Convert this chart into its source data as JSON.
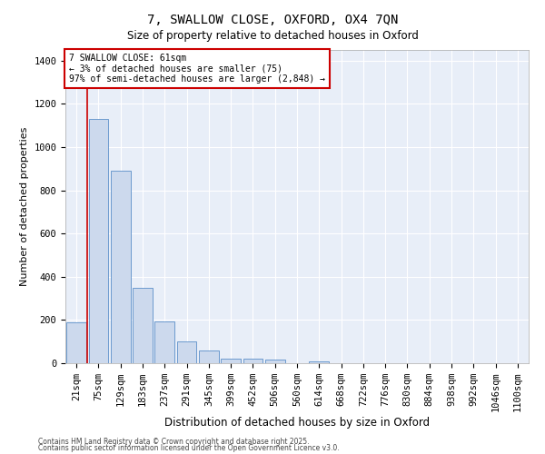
{
  "title": "7, SWALLOW CLOSE, OXFORD, OX4 7QN",
  "subtitle": "Size of property relative to detached houses in Oxford",
  "xlabel": "Distribution of detached houses by size in Oxford",
  "ylabel": "Number of detached properties",
  "bar_color": "#ccd9ed",
  "bar_edge_color": "#5b8fc9",
  "background_color": "#e8eef8",
  "grid_color": "#ffffff",
  "annotation_text": "7 SWALLOW CLOSE: 61sqm\n← 3% of detached houses are smaller (75)\n97% of semi-detached houses are larger (2,848) →",
  "vline_color": "#cc0000",
  "vline_x_index": 1,
  "ylim": [
    0,
    1450
  ],
  "yticks": [
    0,
    200,
    400,
    600,
    800,
    1000,
    1200,
    1400
  ],
  "categories": [
    "21sqm",
    "75sqm",
    "129sqm",
    "183sqm",
    "237sqm",
    "291sqm",
    "345sqm",
    "399sqm",
    "452sqm",
    "506sqm",
    "560sqm",
    "614sqm",
    "668sqm",
    "722sqm",
    "776sqm",
    "830sqm",
    "884sqm",
    "938sqm",
    "992sqm",
    "1046sqm",
    "1100sqm"
  ],
  "values": [
    190,
    1130,
    890,
    350,
    195,
    100,
    60,
    20,
    20,
    15,
    0,
    10,
    0,
    0,
    0,
    0,
    0,
    0,
    0,
    0,
    0
  ],
  "footer1": "Contains HM Land Registry data © Crown copyright and database right 2025.",
  "footer2": "Contains public sector information licensed under the Open Government Licence v3.0.",
  "title_fontsize": 10,
  "subtitle_fontsize": 8.5,
  "ylabel_fontsize": 8,
  "xlabel_fontsize": 8.5,
  "tick_fontsize": 7.5,
  "ann_fontsize": 7,
  "footer_fontsize": 5.5
}
